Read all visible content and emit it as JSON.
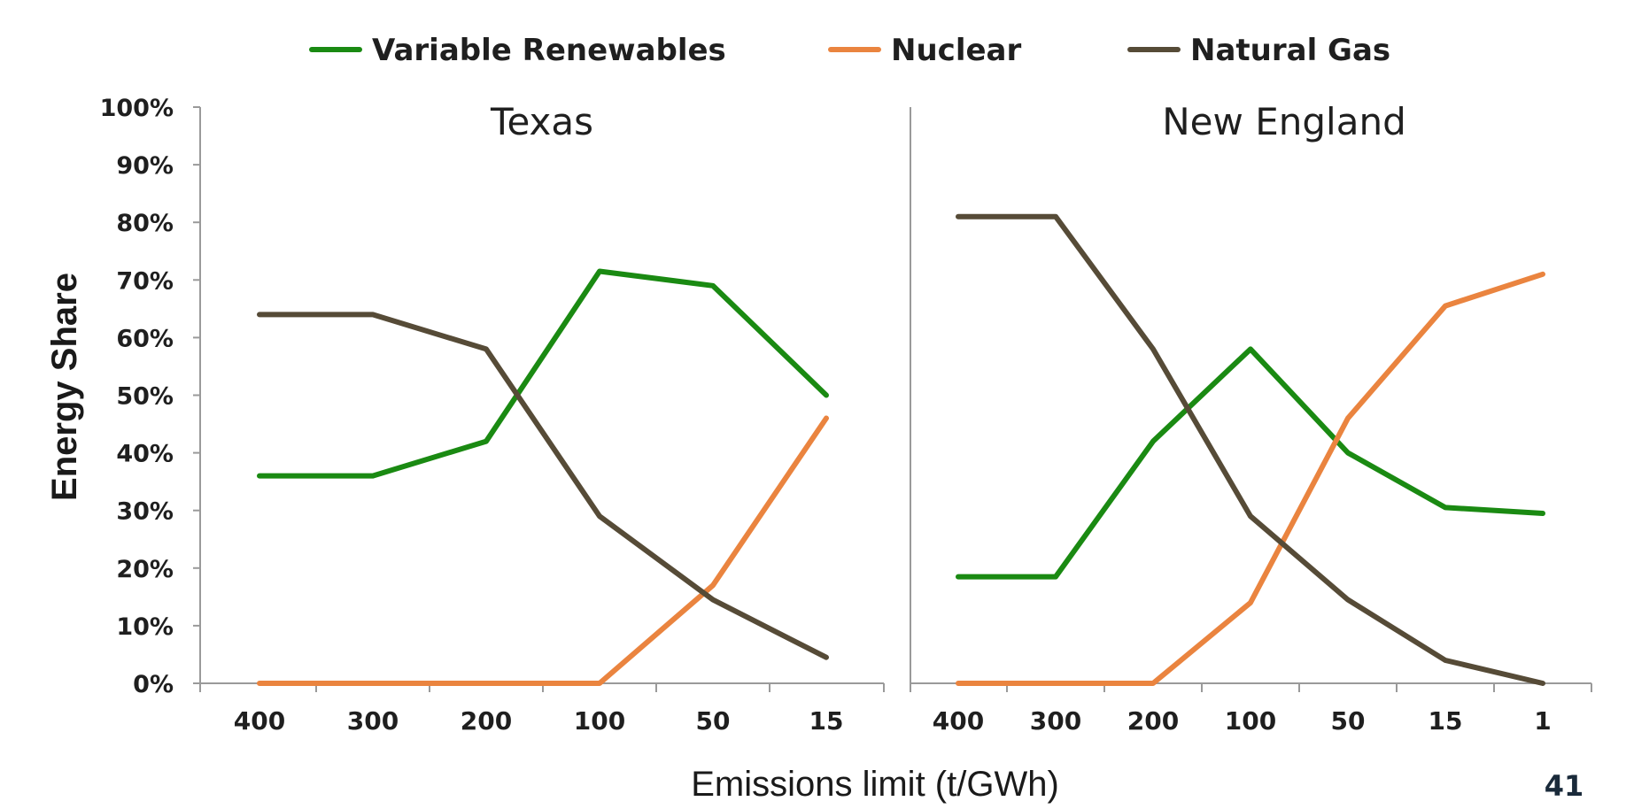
{
  "page_number": "41",
  "colors": {
    "variable_renewables": "#1a8a12",
    "nuclear": "#ea843f",
    "natural_gas": "#564b37",
    "axis": "#9a9a9a"
  },
  "chart_data": {
    "type": "line",
    "xlabel": "Emissions limit (t/GWh)",
    "ylabel": "Energy Share",
    "ylim": [
      0,
      100
    ],
    "y_ticks": [
      "0%",
      "10%",
      "20%",
      "30%",
      "40%",
      "50%",
      "60%",
      "70%",
      "80%",
      "90%",
      "100%"
    ],
    "legend": {
      "placement": "top",
      "entries": [
        "Variable Renewables",
        "Nuclear",
        "Natural Gas"
      ]
    },
    "panels": [
      {
        "title": "Texas",
        "categories": [
          "400",
          "300",
          "200",
          "100",
          "50",
          "15"
        ],
        "series": [
          {
            "name": "Variable Renewables",
            "values": [
              36,
              36,
              42,
              71.5,
              69,
              50
            ]
          },
          {
            "name": "Nuclear",
            "values": [
              0,
              0,
              0,
              0,
              17,
              46
            ]
          },
          {
            "name": "Natural Gas",
            "values": [
              64,
              64,
              58,
              29,
              14.5,
              4.5
            ]
          }
        ]
      },
      {
        "title": "New England",
        "categories": [
          "400",
          "300",
          "200",
          "100",
          "50",
          "15",
          "1"
        ],
        "series": [
          {
            "name": "Variable Renewables",
            "values": [
              18.5,
              18.5,
              42,
              58,
              40,
              30.5,
              29.5
            ]
          },
          {
            "name": "Nuclear",
            "values": [
              0,
              0,
              0,
              14,
              46,
              65.5,
              71
            ]
          },
          {
            "name": "Natural Gas",
            "values": [
              81,
              81,
              58,
              29,
              14.5,
              4,
              0
            ]
          }
        ]
      }
    ]
  }
}
